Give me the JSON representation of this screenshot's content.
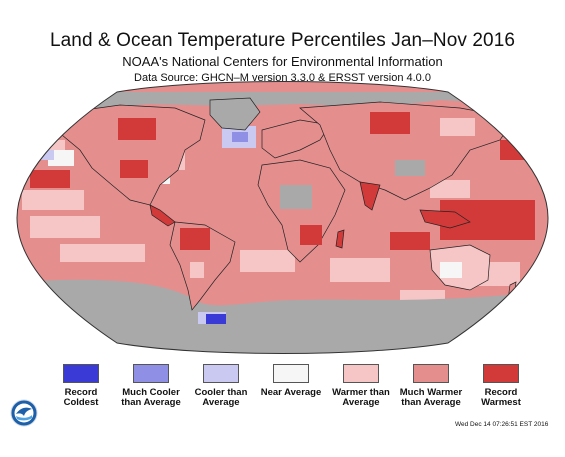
{
  "header": {
    "title": "Land & Ocean Temperature Percentiles Jan–Nov 2016",
    "subtitle": "NOAA's National Centers for Environmental Information",
    "source": "Data Source: GHCN–M version 3.3.0 & ERSST version 4.0.0"
  },
  "map": {
    "projection": "robinson",
    "ocean_color": "#e58e8e",
    "no_data_color": "#a9a9a9",
    "border_color": "#222222"
  },
  "legend": {
    "items": [
      {
        "label": "Record Coldest",
        "color": "#3a3ad6"
      },
      {
        "label": "Much Cooler than Average",
        "color": "#8f8fe6"
      },
      {
        "label": "Cooler than Average",
        "color": "#c9c9f2"
      },
      {
        "label": "Near Average",
        "color": "#f6f6f6"
      },
      {
        "label": "Warmer than Average",
        "color": "#f6c6c6"
      },
      {
        "label": "Much Warmer than Average",
        "color": "#e58e8e"
      },
      {
        "label": "Record Warmest",
        "color": "#d23a3a"
      }
    ]
  },
  "footer": {
    "logo_icon": "noaa-logo-icon",
    "timestamp": "Wed Dec 14 07:26:51 EST 2016"
  }
}
